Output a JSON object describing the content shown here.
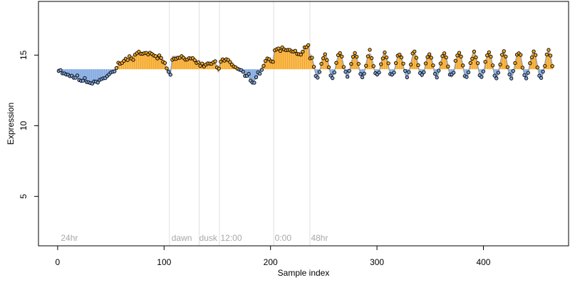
{
  "chart_data": {
    "type": "scatter",
    "title": "",
    "xlabel": "Sample index",
    "ylabel": "Expression",
    "xlim": [
      -18,
      480
    ],
    "ylim": [
      1.5,
      18.8
    ],
    "xticks": [
      0,
      100,
      200,
      300,
      400
    ],
    "yticks": [
      5,
      10,
      15
    ],
    "grid": false,
    "baseline": 14,
    "region_lines": [
      105,
      133,
      152,
      203,
      237
    ],
    "region_labels": [
      {
        "x": 3,
        "text": "24hr"
      },
      {
        "x": 107,
        "text": "dawn"
      },
      {
        "x": 133,
        "text": "dusk"
      },
      {
        "x": 153,
        "text": "12:00"
      },
      {
        "x": 204,
        "text": "0:00"
      },
      {
        "x": 238,
        "text": "48hr"
      }
    ],
    "colors": {
      "above": "#f5a623",
      "below": "#7ea6e0",
      "fit_line": "#a0a0a0",
      "region_line": "#e0e0e0",
      "point_stroke": "#000000"
    },
    "anchors": [
      [
        1,
        14.0
      ],
      [
        5,
        13.8
      ],
      [
        10,
        13.6
      ],
      [
        15,
        13.5
      ],
      [
        20,
        13.3
      ],
      [
        25,
        13.2
      ],
      [
        30,
        13.1
      ],
      [
        35,
        13.1
      ],
      [
        40,
        13.3
      ],
      [
        45,
        13.5
      ],
      [
        50,
        13.7
      ],
      [
        55,
        14.0
      ],
      [
        58,
        14.4
      ],
      [
        62,
        14.6
      ],
      [
        66,
        14.7
      ],
      [
        70,
        14.9
      ],
      [
        75,
        15.1
      ],
      [
        80,
        15.2
      ],
      [
        85,
        15.1
      ],
      [
        90,
        15.0
      ],
      [
        95,
        14.8
      ],
      [
        100,
        14.6
      ],
      [
        103,
        13.9
      ],
      [
        106,
        13.7
      ],
      [
        108,
        14.9
      ],
      [
        112,
        14.9
      ],
      [
        118,
        14.8
      ],
      [
        124,
        14.7
      ],
      [
        130,
        14.6
      ],
      [
        134,
        14.2
      ],
      [
        138,
        14.3
      ],
      [
        143,
        14.4
      ],
      [
        148,
        14.5
      ],
      [
        151,
        13.8
      ],
      [
        153,
        14.6
      ],
      [
        158,
        14.6
      ],
      [
        163,
        14.4
      ],
      [
        168,
        14.0
      ],
      [
        173,
        13.8
      ],
      [
        178,
        13.6
      ],
      [
        183,
        13.1
      ],
      [
        187,
        13.4
      ],
      [
        191,
        14.0
      ],
      [
        195,
        14.5
      ],
      [
        199,
        14.7
      ],
      [
        202,
        14.5
      ],
      [
        204,
        15.4
      ],
      [
        208,
        15.4
      ],
      [
        215,
        15.3
      ],
      [
        222,
        15.2
      ],
      [
        228,
        15.1
      ],
      [
        233,
        15.5
      ],
      [
        236,
        15.6
      ],
      [
        238,
        14.0
      ]
    ],
    "osc": {
      "start": 238,
      "end": 465,
      "mean": 14.3,
      "amplitude": 0.75,
      "period": 14,
      "phase": 2.0,
      "amp_growth": 0.001
    },
    "noise": 0.3,
    "point_spacing": 1.75,
    "seed": 11
  }
}
